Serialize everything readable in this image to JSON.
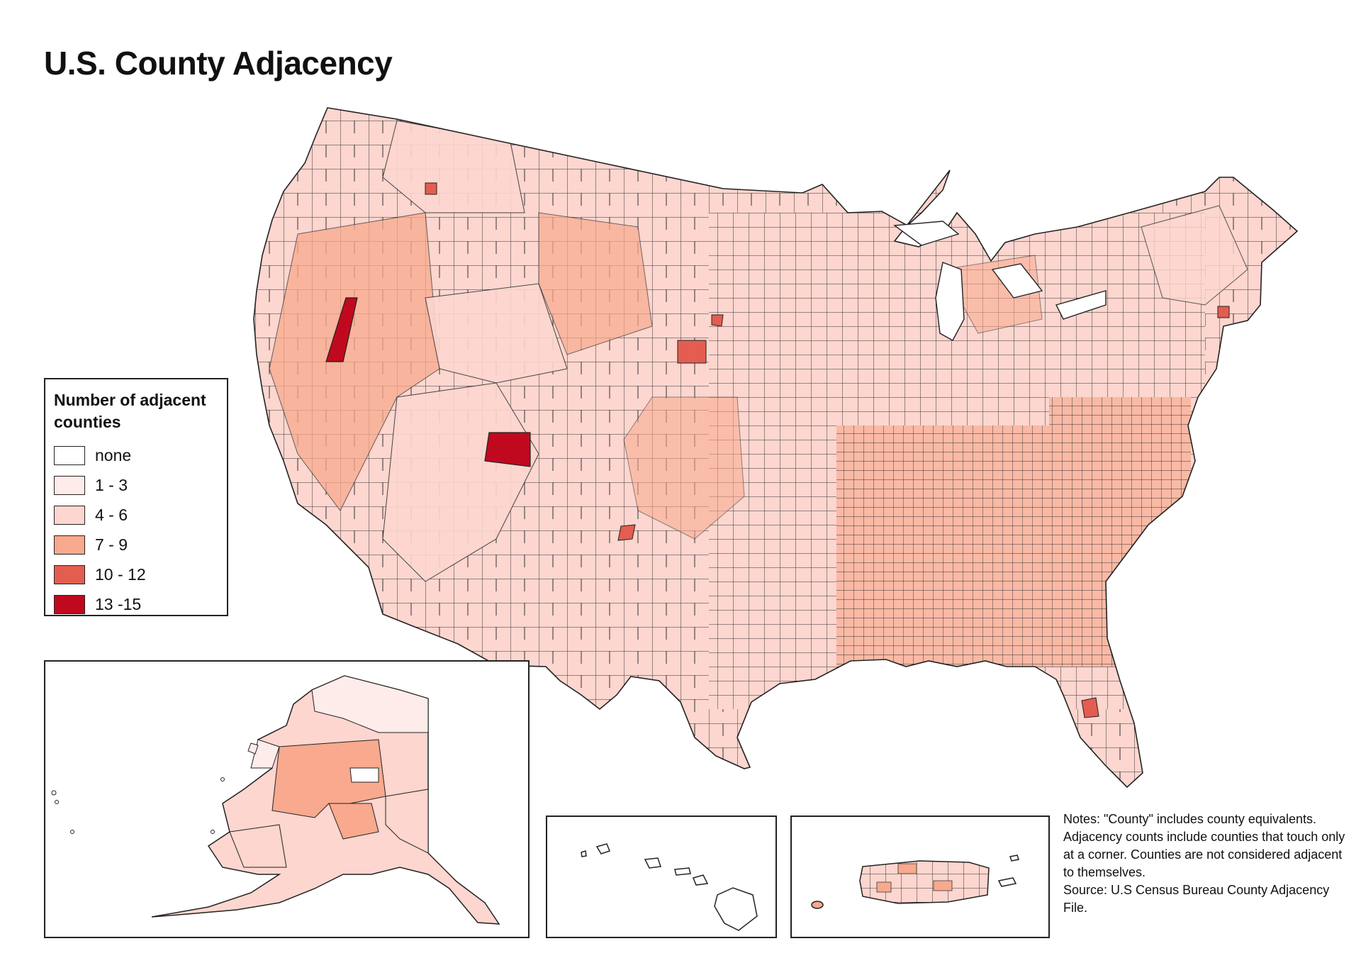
{
  "title": "U.S. County Adjacency",
  "legend": {
    "title": "Number of adjacent counties",
    "classes": [
      {
        "label": "none",
        "color": "#ffffff"
      },
      {
        "label": "1 - 3",
        "color": "#fdecea"
      },
      {
        "label": "4 - 6",
        "color": "#fcd6cf"
      },
      {
        "label": "7 - 9",
        "color": "#f9a98d"
      },
      {
        "label": "10 - 12",
        "color": "#e35d51"
      },
      {
        "label": "13 -15",
        "color": "#c0091e"
      }
    ]
  },
  "insets": [
    "Alaska",
    "Hawaii",
    "Puerto Rico"
  ],
  "notes": {
    "line1": "Notes: \"County\" includes county equivalents. Adjacency counts include counties that touch only at a corner. Counties are not considered adjacent to themselves.",
    "line2": "Source: U.S Census Bureau County Adjacency File."
  },
  "colors": {
    "border": "#222222"
  }
}
